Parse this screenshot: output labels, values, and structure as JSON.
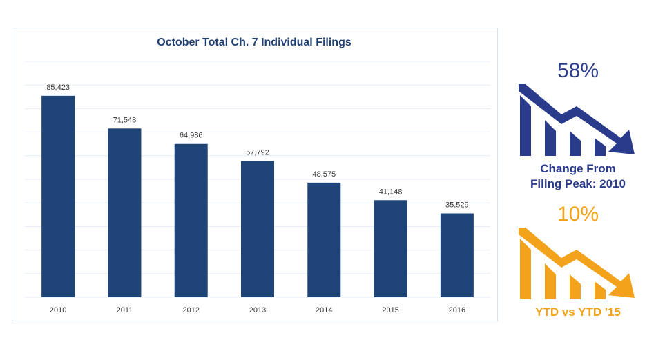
{
  "chart_data": {
    "type": "bar",
    "title": "October Total Ch. 7 Individual Filings",
    "categories": [
      "2010",
      "2011",
      "2012",
      "2013",
      "2014",
      "2015",
      "2016"
    ],
    "values": [
      85423,
      71548,
      64986,
      57792,
      48575,
      41148,
      35529
    ],
    "value_labels": [
      "85,423",
      "71,548",
      "64,986",
      "57,792",
      "48,575",
      "41,148",
      "35,529"
    ],
    "xlabel": "",
    "ylabel": "",
    "ylim": [
      0,
      100000
    ],
    "grid": true,
    "legend": "none",
    "bar_color": "#1f4478"
  },
  "stats": {
    "peak": {
      "percent": "58%",
      "caption_line1": "Change From",
      "caption_line2": "Filing Peak: 2010",
      "color": "#2b3b8c",
      "icon": "declining-bars-arrow-icon"
    },
    "ytd": {
      "percent": "10%",
      "caption": "YTD vs YTD '15",
      "color": "#f3a21b",
      "icon": "declining-bars-arrow-icon"
    }
  }
}
